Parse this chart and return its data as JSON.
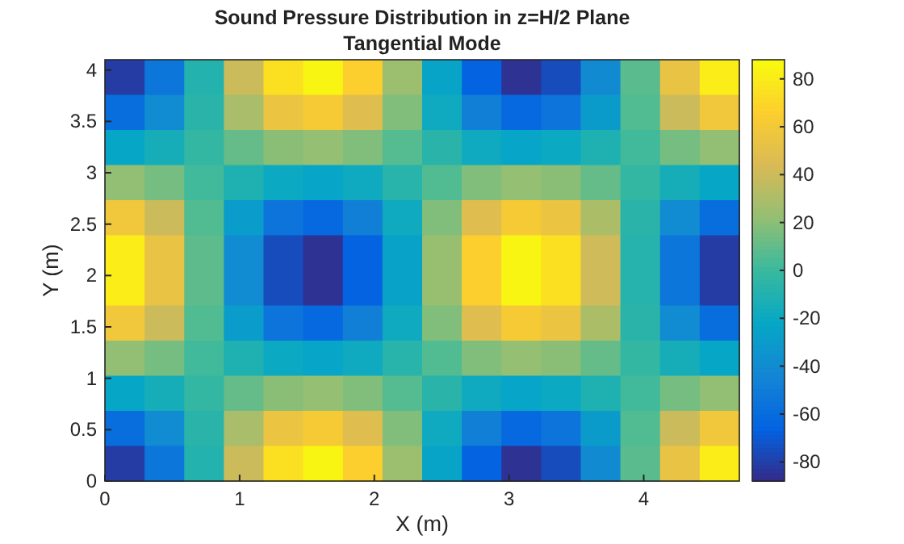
{
  "chart_data": {
    "type": "heatmap",
    "title": "Sound Pressure Distribution in z=H/2 Plane",
    "subtitle": "Tangential Mode",
    "xlabel": "X (m)",
    "ylabel": "Y (m)",
    "xlim": [
      0,
      4.71
    ],
    "ylim": [
      0,
      4.1
    ],
    "xticks": [
      0,
      1,
      2,
      3,
      4
    ],
    "yticks": [
      0,
      0.5,
      1,
      1.5,
      2,
      2.5,
      3,
      3.5,
      4
    ],
    "clim": [
      -88,
      88
    ],
    "cticks": [
      -80,
      -60,
      -40,
      -20,
      0,
      20,
      40,
      60,
      80
    ],
    "cells": [
      [
        -81,
        -54,
        -9,
        40,
        75,
        85,
        66,
        25,
        -24,
        -66,
        -85,
        -75,
        -41,
        8,
        54,
        81
      ],
      [
        -59,
        -40,
        -6,
        29,
        55,
        62,
        48,
        18,
        -18,
        -48,
        -62,
        -55,
        -30,
        6,
        40,
        59
      ],
      [
        -22,
        -15,
        -2,
        11,
        20,
        23,
        18,
        7,
        -6,
        -18,
        -23,
        -20,
        -11,
        2,
        15,
        22
      ],
      [
        22,
        15,
        2,
        -11,
        -20,
        -23,
        -18,
        -7,
        6,
        18,
        23,
        20,
        11,
        -2,
        -15,
        -22
      ],
      [
        59,
        40,
        6,
        -29,
        -55,
        -62,
        -48,
        -18,
        18,
        48,
        62,
        55,
        30,
        -6,
        -40,
        -59
      ],
      [
        81,
        54,
        9,
        -40,
        -75,
        -85,
        -66,
        -25,
        24,
        66,
        85,
        75,
        41,
        -8,
        -54,
        -81
      ],
      [
        81,
        54,
        9,
        -40,
        -75,
        -85,
        -66,
        -25,
        24,
        66,
        85,
        75,
        41,
        -8,
        -54,
        -81
      ],
      [
        59,
        40,
        6,
        -29,
        -55,
        -62,
        -48,
        -18,
        18,
        48,
        62,
        55,
        30,
        -6,
        -40,
        -59
      ],
      [
        22,
        15,
        2,
        -11,
        -20,
        -23,
        -18,
        -7,
        6,
        18,
        23,
        20,
        11,
        -2,
        -15,
        -22
      ],
      [
        -22,
        -15,
        -2,
        11,
        20,
        23,
        18,
        7,
        -6,
        -18,
        -23,
        -20,
        -11,
        2,
        15,
        22
      ],
      [
        -59,
        -40,
        -6,
        29,
        55,
        62,
        48,
        18,
        -18,
        -48,
        -62,
        -55,
        -30,
        6,
        40,
        59
      ],
      [
        -81,
        -54,
        -9,
        40,
        75,
        85,
        66,
        25,
        -24,
        -66,
        -85,
        -75,
        -41,
        8,
        54,
        81
      ]
    ]
  }
}
